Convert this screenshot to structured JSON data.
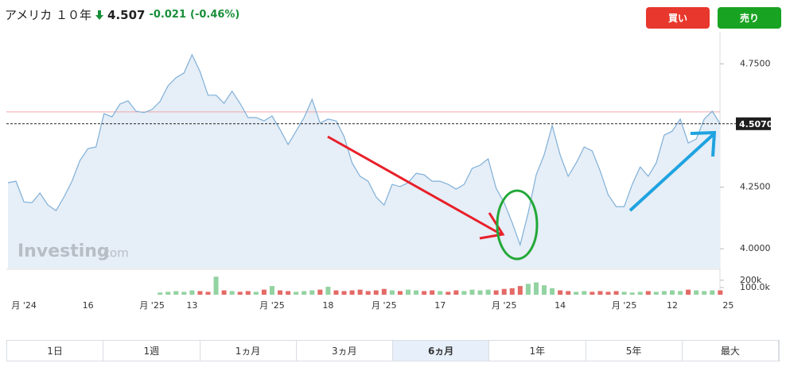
{
  "header": {
    "title": "アメリカ １０年",
    "price": "4.507",
    "change": "-0.021",
    "change_pct": "(-0.46%)"
  },
  "buttons": {
    "buy": "買い",
    "sell": "売り"
  },
  "watermark": {
    "brand": "Investing",
    "suffix": ".com"
  },
  "tabs": {
    "items": [
      "1日",
      "1週",
      "1ヵ月",
      "3ヵ月",
      "6ヵ月",
      "1年",
      "5年",
      "最大"
    ],
    "active": 4
  },
  "chart_data": {
    "type": "area",
    "categories": [
      null,
      null,
      "月 '24",
      null,
      null,
      null,
      null,
      null,
      null,
      null,
      "16",
      null,
      null,
      null,
      null,
      null,
      null,
      null,
      "月 '25",
      null,
      null,
      null,
      null,
      "13",
      null,
      null,
      null,
      null,
      null,
      null,
      null,
      null,
      null,
      "月 '25",
      null,
      null,
      null,
      null,
      null,
      null,
      "18",
      null,
      null,
      null,
      null,
      null,
      null,
      "月 '25",
      null,
      null,
      null,
      null,
      null,
      null,
      "17",
      null,
      null,
      null,
      null,
      null,
      null,
      null,
      "月 '25",
      null,
      null,
      null,
      null,
      null,
      null,
      "14",
      null,
      null,
      null,
      null,
      null,
      null,
      null,
      "月 '25",
      null,
      null,
      null,
      null,
      null,
      "12",
      null,
      null,
      null,
      null,
      null,
      null,
      "25"
    ],
    "series": [
      {
        "name": "price",
        "color": "#7fb0d8",
        "fill": "#e6eef7",
        "values": [
          4.268,
          4.274,
          4.19,
          4.187,
          4.226,
          4.177,
          4.155,
          4.21,
          4.274,
          4.358,
          4.406,
          4.413,
          4.548,
          4.535,
          4.587,
          4.6,
          4.558,
          4.552,
          4.565,
          4.597,
          4.661,
          4.694,
          4.713,
          4.787,
          4.719,
          4.623,
          4.623,
          4.59,
          4.639,
          4.59,
          4.532,
          4.532,
          4.519,
          4.539,
          4.484,
          4.423,
          4.477,
          4.532,
          4.606,
          4.51,
          4.526,
          4.519,
          4.455,
          4.348,
          4.294,
          4.274,
          4.21,
          4.177,
          4.261,
          4.252,
          4.268,
          4.306,
          4.3,
          4.274,
          4.274,
          4.261,
          4.242,
          4.261,
          4.326,
          4.339,
          4.365,
          4.245,
          4.187,
          4.106,
          4.016,
          4.145,
          4.3,
          4.381,
          4.5,
          4.381,
          4.294,
          4.348,
          4.413,
          4.397,
          4.316,
          4.219,
          4.171,
          4.171,
          4.261,
          4.332,
          4.294,
          4.348,
          4.461,
          4.477,
          4.526,
          4.429,
          4.445,
          4.526,
          4.558,
          4.507,
          null
        ]
      },
      {
        "name": "volume",
        "up_color": "#93d3a2",
        "down_color": "#e46a66",
        "values": [
          null,
          null,
          null,
          null,
          null,
          null,
          null,
          null,
          null,
          null,
          null,
          null,
          null,
          null,
          null,
          null,
          null,
          null,
          null,
          30000,
          40000,
          50000,
          40000,
          60000,
          50000,
          40000,
          250000,
          60000,
          50000,
          40000,
          50000,
          40000,
          70000,
          120000,
          60000,
          50000,
          40000,
          50000,
          60000,
          70000,
          110000,
          60000,
          50000,
          60000,
          70000,
          50000,
          60000,
          80000,
          60000,
          50000,
          70000,
          60000,
          50000,
          60000,
          50000,
          40000,
          60000,
          50000,
          70000,
          60000,
          70000,
          60000,
          80000,
          90000,
          120000,
          150000,
          170000,
          130000,
          90000,
          60000,
          50000,
          40000,
          50000,
          40000,
          50000,
          40000,
          50000,
          40000,
          30000,
          40000,
          50000,
          40000,
          50000,
          60000,
          50000,
          70000,
          60000,
          50000,
          60000,
          60000,
          null
        ]
      }
    ],
    "ylim": [
      3.92,
      4.88
    ],
    "yticks": [
      {
        "value": 4,
        "label": "4.0000"
      },
      {
        "value": 4.25,
        "label": "4.2500"
      },
      {
        "value": 4.75,
        "label": "4.7500"
      }
    ],
    "y2lim": [
      0,
      340000
    ],
    "y2ticks": [
      {
        "value": 100000,
        "label": "100.0k"
      },
      {
        "value": 200000,
        "label": "200k"
      }
    ],
    "last_price": {
      "value": 4.507,
      "label": "4.5070"
    },
    "reference_line": {
      "value": 4.555,
      "color": "#f0a8a8"
    }
  }
}
